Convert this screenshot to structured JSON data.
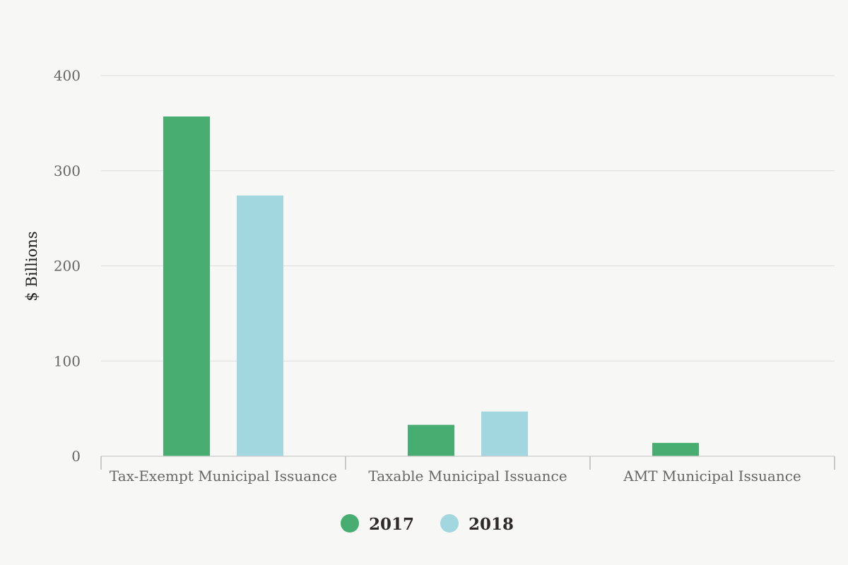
{
  "chart_data": {
    "type": "bar",
    "title": "",
    "xlabel": "",
    "ylabel": "$ Billions",
    "categories": [
      "Tax-Exempt Municipal Issuance",
      "Taxable Municipal Issuance",
      "AMT Municipal Issuance"
    ],
    "series": [
      {
        "name": "2017",
        "color": "#48ad71",
        "values": [
          357,
          33,
          14
        ]
      },
      {
        "name": "2018",
        "color": "#a3d7e0",
        "values": [
          274,
          47,
          0
        ]
      }
    ],
    "ylim": [
      0,
      400
    ],
    "yticks": [
      0,
      100,
      200,
      300,
      400
    ],
    "grid": true,
    "legend_position": "bottom-center"
  }
}
